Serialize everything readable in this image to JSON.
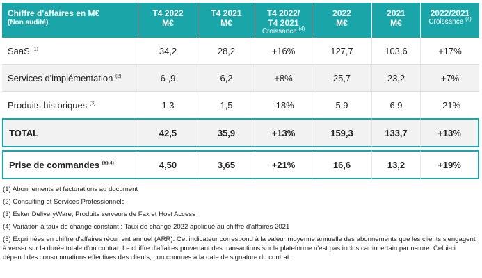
{
  "header": {
    "col0_title": "Chiffre d'affaires en M€",
    "col0_sub": "(Non audité)",
    "col1_line1": "T4 2022",
    "col1_line2": "M€",
    "col2_line1": "T4 2021",
    "col2_line2": "M€",
    "col3_line1": "T4 2022/",
    "col3_line2": "T4 2021",
    "col3_line3": "Croissance",
    "col3_sup": "(4)",
    "col4_line1": "2022",
    "col4_line2": "M€",
    "col5_line1": "2021",
    "col5_line2": "M€",
    "col6_line1": "2022/2021",
    "col6_line2": "Croissance",
    "col6_sup": "(4)"
  },
  "rows": [
    {
      "label": "SaaS",
      "note": "(1)",
      "values": [
        "34,2",
        "28,2",
        "+16%",
        "127,7",
        "103,6",
        "+17%"
      ]
    },
    {
      "label": "Services d'implémentation",
      "note": "(2)",
      "values": [
        "6 ,9",
        "6,2",
        "+8%",
        "25,7",
        "23,2",
        "+7%"
      ]
    },
    {
      "label": "Produits historiques",
      "note": "(3)",
      "values": [
        "1,3",
        "1,5",
        "-18%",
        "5,9",
        "6,9",
        "-21%"
      ]
    }
  ],
  "total": {
    "label": "TOTAL",
    "values": [
      "42,5",
      "35,9",
      "+13%",
      "159,3",
      "133,7",
      "+13%"
    ]
  },
  "orders": {
    "label": "Prise de commandes",
    "note": "(5)(4)",
    "values": [
      "4,50",
      "3,65",
      "+21%",
      "16,6",
      "13,2",
      "+19%"
    ]
  },
  "footnotes": [
    "(1) Abonnements et facturations au document",
    "(2) Consulting et Services Professionnels",
    "(3) Esker DeliveryWare, Produits serveurs de Fax et Host Access",
    "(4) Variation à taux de change constant : Taux de change 2022 appliqué au chiffre d'affaires 2021",
    "(5) Exprimées en chiffre d'affaires récurrent annuel (ARR). Cet indicateur correspond à la valeur moyenne annuelle des abonnements que les clients s'engagent à verser sur la durée totale d'un contrat. Le chiffre d'affaires provenant des transactions sur la plateforme n'est pas inclus car incertain par nature. Celui-ci dépend des consommations effectives des clients, non connues à la date de signature du contrat."
  ],
  "colors": {
    "accent": "#1aa6a8",
    "row_alt": "#f2f2f2"
  }
}
